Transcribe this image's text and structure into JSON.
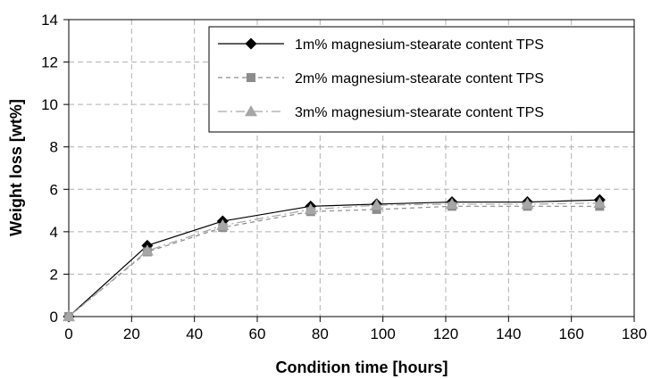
{
  "chart_data": {
    "type": "line",
    "title": "",
    "xlabel": "Condition time [hours]",
    "ylabel": "Weight loss [wt%]",
    "xlim": [
      0,
      180
    ],
    "ylim": [
      0,
      14
    ],
    "x_ticks": [
      0,
      20,
      40,
      60,
      80,
      100,
      120,
      140,
      160,
      180
    ],
    "y_ticks": [
      0,
      2,
      4,
      6,
      8,
      10,
      12,
      14
    ],
    "grid": "dashed",
    "legend_position": "top-right",
    "series": [
      {
        "name": "1m% magnesium-stearate content TPS",
        "marker": "diamond",
        "color": "#000000",
        "line_style": "solid",
        "x": [
          0,
          25,
          49,
          77,
          98,
          122,
          146,
          169
        ],
        "y": [
          0,
          3.35,
          4.5,
          5.2,
          5.3,
          5.4,
          5.4,
          5.5
        ]
      },
      {
        "name": "2m% magnesium-stearate content TPS",
        "marker": "square",
        "color": "#8c8c8c",
        "line_style": "dashed",
        "x": [
          0,
          25,
          49,
          77,
          98,
          122,
          146,
          169
        ],
        "y": [
          0,
          3.05,
          4.2,
          4.95,
          5.05,
          5.2,
          5.2,
          5.2
        ]
      },
      {
        "name": "3m% magnesium-stearate content TPS",
        "marker": "triangle",
        "color": "#a6a6a6",
        "line_style": "dashdot",
        "x": [
          0,
          25,
          49,
          77,
          98,
          122,
          146,
          169
        ],
        "y": [
          0,
          3.1,
          4.3,
          5.05,
          5.25,
          5.3,
          5.3,
          5.35
        ]
      }
    ]
  }
}
